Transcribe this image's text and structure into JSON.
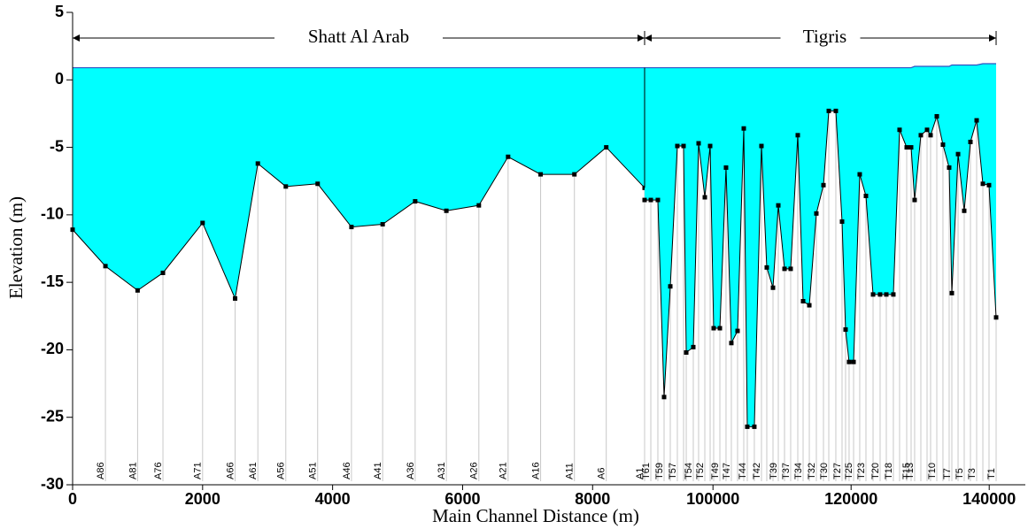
{
  "chart_data": {
    "type": "profile",
    "xlabel": "Main Channel Distance (m)",
    "ylabel": "Elevation (m)",
    "ylim": [
      -30,
      5
    ],
    "yticks": [
      5,
      0,
      -5,
      -10,
      -15,
      -20,
      -25,
      -30
    ],
    "water_color": "#00ffff",
    "ground_color": "#000000",
    "reaches": [
      {
        "name": "Shatt Al Arab",
        "xlim": [
          0,
          8800
        ],
        "xticks": [
          0,
          2000,
          4000,
          6000,
          8000
        ],
        "x": [
          0,
          505,
          1000,
          1390,
          2000,
          2500,
          2850,
          3280,
          3770,
          4290,
          4770,
          5270,
          5750,
          6250,
          6700,
          7200,
          7720,
          8210,
          8800
        ],
        "ground": [
          -11.1,
          -13.8,
          -15.6,
          -14.3,
          -10.6,
          -16.2,
          -6.2,
          -7.9,
          -7.7,
          -10.9,
          -10.7,
          -9.0,
          -9.7,
          -9.3,
          -5.7,
          -7.0,
          -7.0,
          -5.0,
          -8.0
        ],
        "water": [
          0.9,
          0.9,
          0.9,
          0.9,
          0.9,
          0.9,
          0.9,
          0.9,
          0.9,
          0.9,
          0.9,
          0.9,
          0.9,
          0.9,
          0.9,
          0.9,
          0.9,
          0.9,
          0.9
        ],
        "station_labels": [
          null,
          "A86",
          "A81",
          "A76",
          "A71",
          "A66",
          "A61",
          "A56",
          "A51",
          "A46",
          "A41",
          "A36",
          "A31",
          "A26",
          "A21",
          "A16",
          "A11",
          "A6",
          "A1"
        ]
      },
      {
        "name": "Tigris",
        "xlim": [
          90100,
          141000
        ],
        "xticks": [
          100000,
          120000,
          140000
        ],
        "x": [
          90100,
          91000,
          92020,
          92920,
          93820,
          94840,
          95740,
          96130,
          97150,
          97920,
          98820,
          99590,
          100100,
          101000,
          101890,
          102660,
          103560,
          104460,
          104970,
          105990,
          107020,
          107790,
          108690,
          109460,
          110360,
          111250,
          112280,
          113050,
          113950,
          114970,
          116000,
          116770,
          117790,
          118690,
          119200,
          119710,
          120360,
          121250,
          122150,
          123180,
          124200,
          125100,
          126120,
          127020,
          128050,
          128690,
          129200,
          130100,
          131000,
          131510,
          132410,
          133300,
          134200,
          134590,
          135490,
          136380,
          137280,
          138180,
          139080,
          139970,
          141000
        ],
        "ground": [
          -8.9,
          -8.9,
          -8.9,
          -23.5,
          -15.3,
          -4.9,
          -4.9,
          -20.2,
          -19.8,
          -4.7,
          -8.7,
          -4.9,
          -18.4,
          -18.4,
          -6.5,
          -19.5,
          -18.6,
          -3.6,
          -25.7,
          -25.7,
          -4.9,
          -13.9,
          -15.4,
          -9.3,
          -14.0,
          -14.0,
          -4.1,
          -16.4,
          -16.7,
          -9.9,
          -7.8,
          -2.3,
          -2.3,
          -10.5,
          -18.5,
          -20.9,
          -20.9,
          -7.0,
          -8.6,
          -15.9,
          -15.9,
          -15.9,
          -15.9,
          -3.7,
          -5.0,
          -5.0,
          -8.9,
          -4.1,
          -3.7,
          -4.1,
          -2.7,
          -4.8,
          -6.5,
          -15.8,
          -5.5,
          -9.7,
          -4.6,
          -3.0,
          -7.7,
          -7.8,
          -17.6
        ],
        "water": [
          0.9,
          0.9,
          0.9,
          0.9,
          0.9,
          0.9,
          0.9,
          0.9,
          0.9,
          0.9,
          0.9,
          0.9,
          0.9,
          0.9,
          0.9,
          0.9,
          0.9,
          0.9,
          0.9,
          0.9,
          0.9,
          0.9,
          0.9,
          0.9,
          0.9,
          0.9,
          0.9,
          0.9,
          0.9,
          0.9,
          0.9,
          0.9,
          0.9,
          0.9,
          0.9,
          0.9,
          0.9,
          0.9,
          0.9,
          0.9,
          0.9,
          0.9,
          0.9,
          0.9,
          0.9,
          0.9,
          1.0,
          1.0,
          1.0,
          1.0,
          1.0,
          1.0,
          1.0,
          1.1,
          1.1,
          1.1,
          1.1,
          1.1,
          1.2,
          1.2,
          1.2
        ],
        "station_labels": [
          null,
          "T61",
          null,
          "T59",
          null,
          "T57",
          null,
          null,
          "T54",
          null,
          "T52",
          null,
          null,
          "T49",
          null,
          "T47",
          null,
          null,
          "T44",
          null,
          "T42",
          null,
          null,
          "T39",
          null,
          "T37",
          null,
          "T34",
          null,
          "T32",
          null,
          "T30",
          null,
          "T27",
          null,
          null,
          "T25",
          null,
          "T23",
          null,
          "T20",
          null,
          "T18",
          null,
          null,
          "T15",
          "T13",
          null,
          null,
          null,
          "T10",
          null,
          null,
          "T7",
          null,
          "T5",
          null,
          "T3",
          null,
          null,
          "T1"
        ]
      }
    ]
  }
}
